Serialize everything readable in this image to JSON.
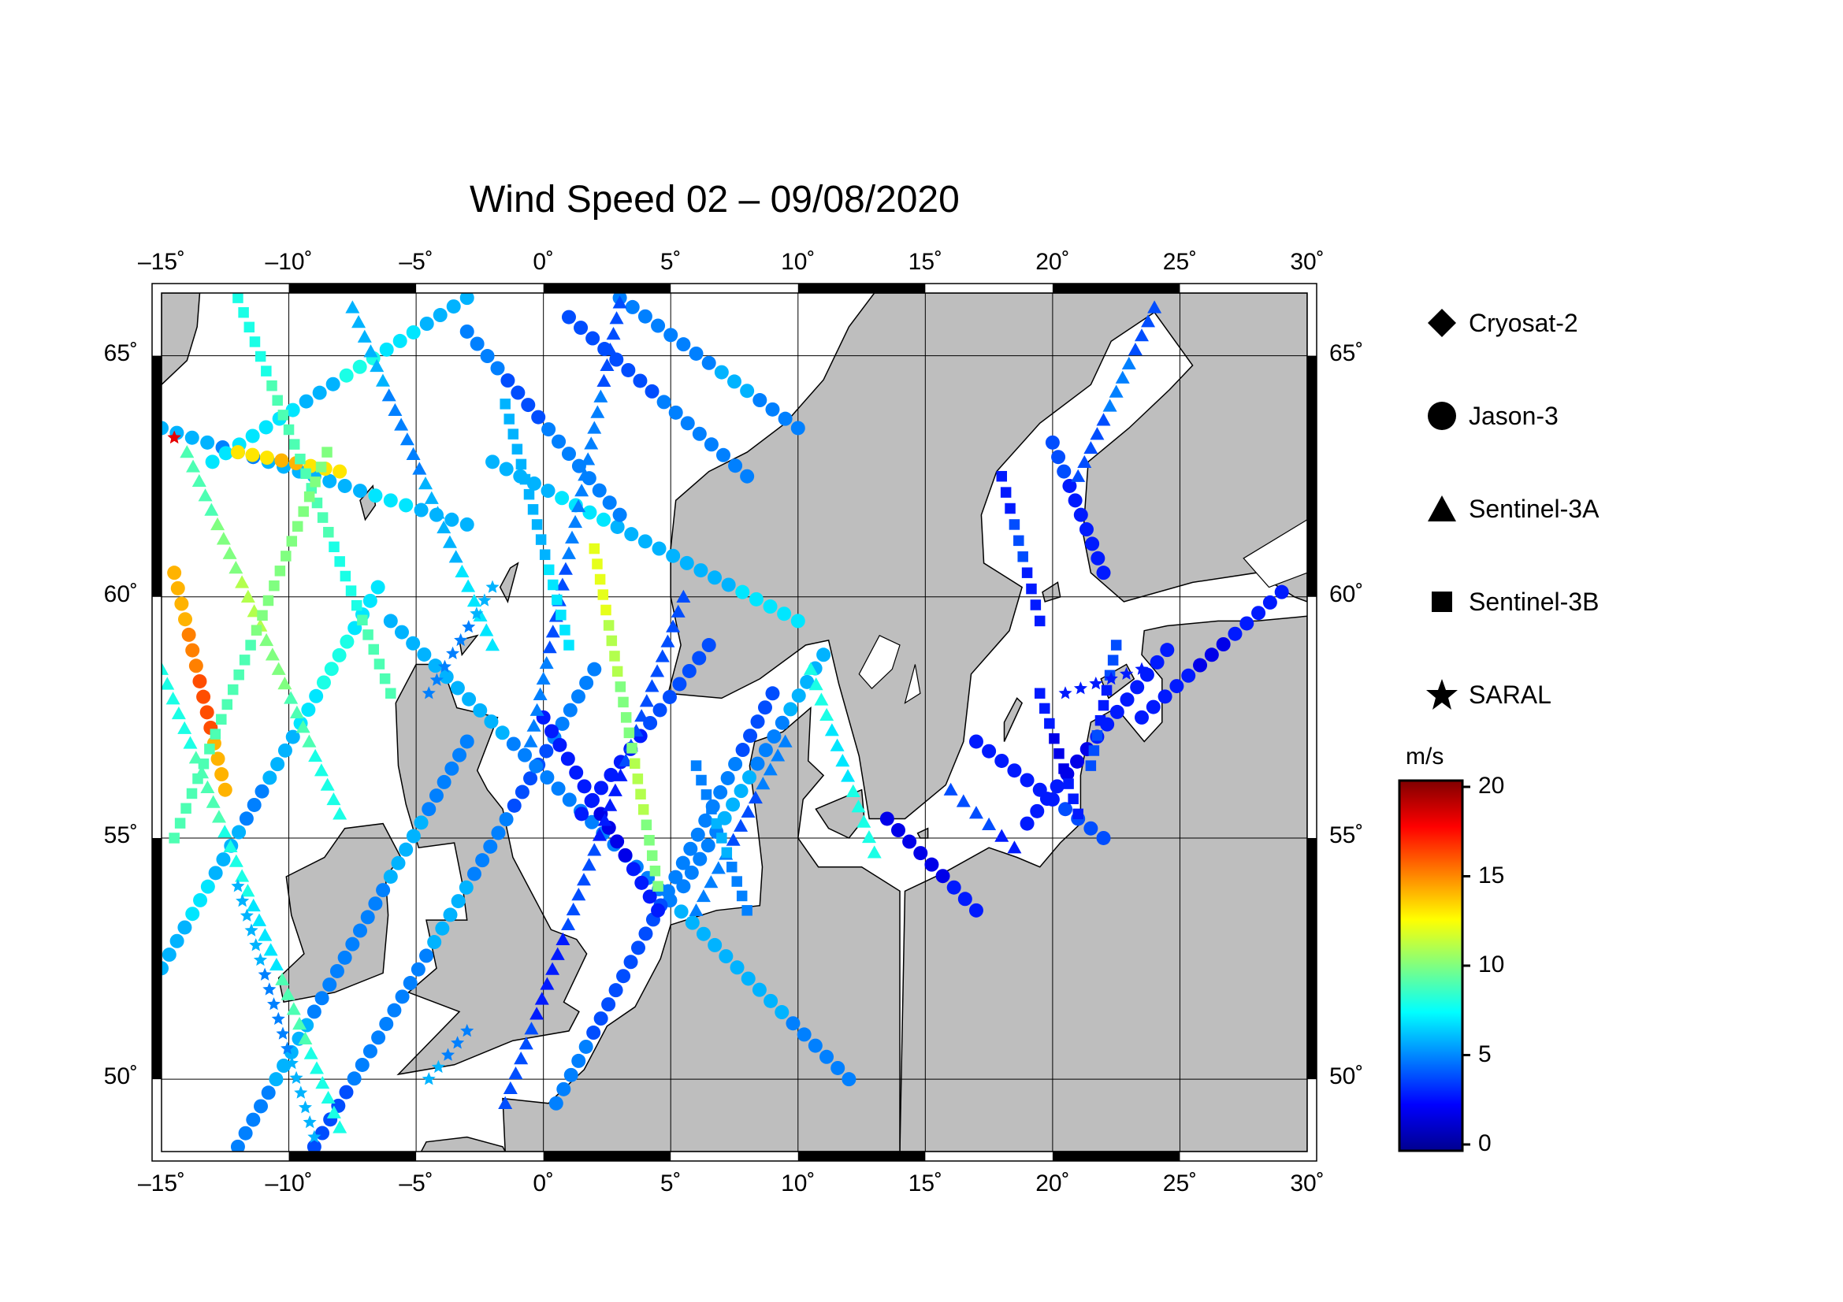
{
  "title": "Wind Speed 02 – 09/08/2020",
  "map": {
    "lon_range": [
      -15,
      30
    ],
    "lat_range": [
      48.5,
      66.3
    ],
    "lon_ticks": [
      -15,
      -10,
      -5,
      0,
      5,
      10,
      15,
      20,
      25,
      30
    ],
    "lon_tick_labels": [
      "–15˚",
      "–10˚",
      "–5˚",
      "0˚",
      "5˚",
      "10˚",
      "15˚",
      "20˚",
      "25˚",
      "30˚"
    ],
    "lat_ticks": [
      50,
      55,
      60,
      65
    ],
    "lat_tick_labels": [
      "50˚",
      "55˚",
      "60˚",
      "65˚"
    ],
    "land_color": "#bebebe",
    "sea_color": "#ffffff",
    "grid": true
  },
  "legend": {
    "satellites": [
      {
        "name": "Cryosat-2",
        "symbol": "diamond-icon"
      },
      {
        "name": "Jason-3",
        "symbol": "circle-icon"
      },
      {
        "name": "Sentinel-3A",
        "symbol": "triangle-icon"
      },
      {
        "name": "Sentinel-3B",
        "symbol": "square-icon"
      },
      {
        "name": "SARAL",
        "symbol": "star-icon"
      }
    ]
  },
  "colorbar": {
    "unit": "m/s",
    "range": [
      0,
      20
    ],
    "ticks": [
      0,
      5,
      10,
      15,
      20
    ],
    "tick_labels": [
      "0",
      "5",
      "10",
      "15",
      "20"
    ],
    "colormap": [
      "#00008f",
      "#0000ff",
      "#0080ff",
      "#00ffff",
      "#80ff80",
      "#ffff00",
      "#ff8000",
      "#ff0000",
      "#800000"
    ]
  },
  "chart_data": {
    "type": "scatter",
    "title": "Wind Speed 02 – 09/08/2020",
    "xlabel": "",
    "ylabel": "",
    "xlim": [
      -15,
      30
    ],
    "ylim": [
      48.5,
      66.3
    ],
    "color_scale": "jet",
    "color_unit": "m/s",
    "color_range": [
      0,
      20
    ],
    "tracks": [
      {
        "satellite": "Jason-3",
        "from": [
          -15,
          52.3
        ],
        "to": [
          -6.5,
          60.2
        ],
        "speeds": [
          6,
          7,
          6,
          5,
          6,
          7,
          8,
          7
        ]
      },
      {
        "satellite": "Jason-3",
        "from": [
          -15,
          63.5
        ],
        "to": [
          -3,
          61.5
        ],
        "speeds": [
          6,
          5,
          6,
          6,
          7,
          6
        ]
      },
      {
        "satellite": "Jason-3",
        "from": [
          -13,
          62.8
        ],
        "to": [
          -3,
          66.2
        ],
        "speeds": [
          7,
          7,
          6,
          8,
          7,
          6
        ]
      },
      {
        "satellite": "Jason-3",
        "from": [
          -9,
          48.6
        ],
        "to": [
          2,
          58.5
        ],
        "speeds": [
          4,
          5,
          5,
          6,
          5,
          4,
          5
        ]
      },
      {
        "satellite": "Jason-3",
        "from": [
          -12,
          48.6
        ],
        "to": [
          -3,
          57
        ],
        "speeds": [
          5,
          6,
          5,
          5,
          6,
          5
        ]
      },
      {
        "satellite": "Jason-3",
        "from": [
          -6,
          59.5
        ],
        "to": [
          12,
          50
        ],
        "speeds": [
          6,
          6,
          5,
          5,
          5,
          6,
          6,
          5
        ]
      },
      {
        "satellite": "Jason-3",
        "from": [
          -2,
          62.8
        ],
        "to": [
          10,
          59.5
        ],
        "speeds": [
          6,
          7,
          6,
          6,
          7
        ]
      },
      {
        "satellite": "Jason-3",
        "from": [
          -3,
          65.5
        ],
        "to": [
          3,
          61.7
        ],
        "speeds": [
          5,
          4,
          5,
          5
        ]
      },
      {
        "satellite": "Jason-3",
        "from": [
          1,
          65.8
        ],
        "to": [
          8,
          62.5
        ],
        "speeds": [
          4,
          4,
          5,
          5
        ]
      },
      {
        "satellite": "Jason-3",
        "from": [
          0.5,
          49.5
        ],
        "to": [
          9,
          58
        ],
        "speeds": [
          5,
          4,
          4,
          5,
          5,
          4
        ]
      },
      {
        "satellite": "Jason-3",
        "from": [
          1.5,
          55.5
        ],
        "to": [
          6.5,
          59
        ],
        "speeds": [
          3,
          3,
          4,
          4
        ]
      },
      {
        "satellite": "Jason-3",
        "from": [
          0,
          57.5
        ],
        "to": [
          4.5,
          53.5
        ],
        "speeds": [
          3,
          3,
          2,
          3
        ]
      },
      {
        "satellite": "Jason-3",
        "from": [
          10,
          63.5
        ],
        "to": [
          3,
          66.2
        ],
        "speeds": [
          5,
          6,
          5,
          5
        ]
      },
      {
        "satellite": "Jason-3",
        "from": [
          5.5,
          54
        ],
        "to": [
          11,
          58.8
        ],
        "speeds": [
          5,
          6,
          5,
          6
        ]
      },
      {
        "satellite": "Jason-3",
        "from": [
          23.5,
          57.5
        ],
        "to": [
          29,
          60.1
        ],
        "speeds": [
          3,
          3,
          2,
          3,
          3
        ]
      },
      {
        "satellite": "Jason-3",
        "from": [
          19,
          55.3
        ],
        "to": [
          24.5,
          58.9
        ],
        "speeds": [
          3,
          2,
          3,
          3
        ]
      },
      {
        "satellite": "Jason-3",
        "from": [
          17,
          57
        ],
        "to": [
          22,
          55
        ],
        "speeds": [
          3,
          3,
          4
        ]
      },
      {
        "satellite": "Jason-3",
        "from": [
          20,
          63.2
        ],
        "to": [
          22,
          60.5
        ],
        "speeds": [
          4,
          3,
          3
        ]
      },
      {
        "satellite": "Jason-3",
        "from": [
          13.5,
          55.4
        ],
        "to": [
          17,
          53.5
        ],
        "speeds": [
          2,
          2,
          3
        ]
      },
      {
        "satellite": "Jason-3",
        "from": [
          -14.5,
          60.5
        ],
        "to": [
          -12.5,
          56
        ],
        "speeds": [
          14,
          15,
          16,
          14
        ]
      },
      {
        "satellite": "Jason-3",
        "from": [
          -12,
          63
        ],
        "to": [
          -8,
          62.6
        ],
        "speeds": [
          13,
          14,
          13
        ]
      },
      {
        "satellite": "Sentinel-3A",
        "from": [
          -14,
          63
        ],
        "to": [
          -8,
          55.5
        ],
        "speeds": [
          9,
          10,
          11,
          10,
          9,
          8
        ]
      },
      {
        "satellite": "Sentinel-3A",
        "from": [
          -15,
          58.5
        ],
        "to": [
          -8,
          49
        ],
        "speeds": [
          8,
          9,
          8,
          7,
          9,
          8
        ]
      },
      {
        "satellite": "Sentinel-3A",
        "from": [
          -7.5,
          66
        ],
        "to": [
          -2,
          59
        ],
        "speeds": [
          6,
          5,
          6,
          7
        ]
      },
      {
        "satellite": "Sentinel-3A",
        "from": [
          3,
          66.1
        ],
        "to": [
          -0.5,
          57
        ],
        "speeds": [
          4,
          5,
          5,
          4,
          5
        ]
      },
      {
        "satellite": "Sentinel-3A",
        "from": [
          5.5,
          60
        ],
        "to": [
          -1.5,
          49.5
        ],
        "speeds": [
          4,
          4,
          3,
          4,
          3,
          4
        ]
      },
      {
        "satellite": "Sentinel-3A",
        "from": [
          9.5,
          57
        ],
        "to": [
          6,
          53.5
        ],
        "speeds": [
          5,
          4,
          5
        ]
      },
      {
        "satellite": "Sentinel-3A",
        "from": [
          10.5,
          58.5
        ],
        "to": [
          13,
          54.7
        ],
        "speeds": [
          8,
          7,
          8
        ]
      },
      {
        "satellite": "Sentinel-3A",
        "from": [
          16,
          56
        ],
        "to": [
          18.5,
          54.8
        ],
        "speeds": [
          4,
          4,
          3
        ]
      },
      {
        "satellite": "Sentinel-3A",
        "from": [
          24,
          66
        ],
        "to": [
          21,
          62.5
        ],
        "speeds": [
          4,
          5,
          4
        ]
      },
      {
        "satellite": "Sentinel-3B",
        "from": [
          -12,
          66.2
        ],
        "to": [
          -6,
          58
        ],
        "speeds": [
          8,
          9,
          9,
          8,
          9
        ]
      },
      {
        "satellite": "Sentinel-3B",
        "from": [
          -8.5,
          63
        ],
        "to": [
          -14.5,
          55
        ],
        "speeds": [
          10,
          10,
          9,
          9
        ]
      },
      {
        "satellite": "Sentinel-3B",
        "from": [
          -1.5,
          64
        ],
        "to": [
          1,
          59
        ],
        "speeds": [
          6,
          6,
          7
        ]
      },
      {
        "satellite": "Sentinel-3B",
        "from": [
          2,
          61
        ],
        "to": [
          4.5,
          54
        ],
        "speeds": [
          12,
          11,
          10,
          11,
          10
        ]
      },
      {
        "satellite": "Sentinel-3B",
        "from": [
          6,
          56.5
        ],
        "to": [
          8,
          53.5
        ],
        "speeds": [
          5,
          6,
          5
        ]
      },
      {
        "satellite": "Sentinel-3B",
        "from": [
          18,
          62.5
        ],
        "to": [
          19.5,
          59.5
        ],
        "speeds": [
          3,
          4,
          3
        ]
      },
      {
        "satellite": "Sentinel-3B",
        "from": [
          19.5,
          58
        ],
        "to": [
          21,
          55.5
        ],
        "speeds": [
          3,
          2,
          3
        ]
      },
      {
        "satellite": "Sentinel-3B",
        "from": [
          21.5,
          56.5
        ],
        "to": [
          22.5,
          59
        ],
        "speeds": [
          4,
          3,
          4
        ]
      },
      {
        "satellite": "SARAL",
        "from": [
          -12,
          54
        ],
        "to": [
          -9,
          48.8
        ],
        "speeds": [
          6,
          5,
          6
        ]
      },
      {
        "satellite": "SARAL",
        "from": [
          -4.5,
          58
        ],
        "to": [
          -2,
          60.2
        ],
        "speeds": [
          5,
          5,
          6
        ]
      },
      {
        "satellite": "SARAL",
        "from": [
          -14.5,
          63.3
        ],
        "to": [
          -14.5,
          63.3
        ],
        "speeds": [
          18
        ]
      },
      {
        "satellite": "SARAL",
        "from": [
          20.5,
          58
        ],
        "to": [
          23.5,
          58.5
        ],
        "speeds": [
          3,
          3
        ]
      },
      {
        "satellite": "SARAL",
        "from": [
          -4.5,
          50
        ],
        "to": [
          -3,
          51
        ],
        "speeds": [
          6,
          5
        ]
      }
    ]
  }
}
